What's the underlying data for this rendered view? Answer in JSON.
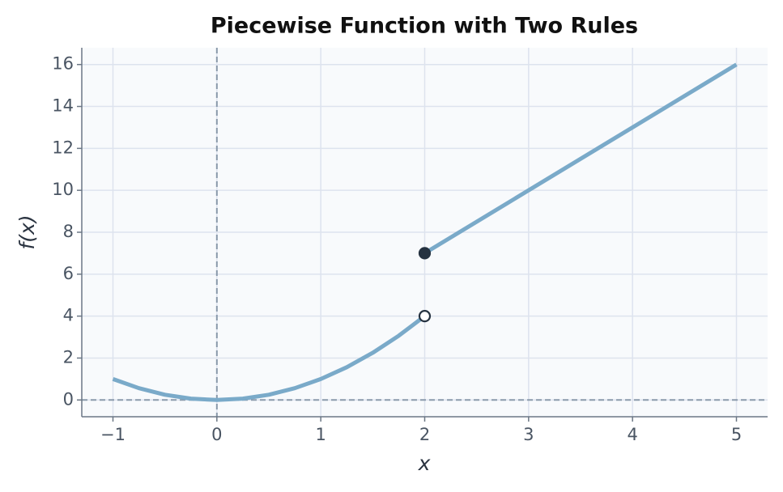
{
  "chart_data": {
    "type": "line",
    "title": "Piecewise Function with Two Rules",
    "x_label": "x",
    "y_label": "f(x)",
    "xlim": [
      -1.3,
      5.3
    ],
    "ylim": [
      -0.8,
      16.8
    ],
    "xticks": [
      {
        "value": -1,
        "label": "−1"
      },
      0,
      1,
      2,
      3,
      4,
      5
    ],
    "yticks": [
      0,
      2,
      4,
      6,
      8,
      10,
      12,
      14,
      16
    ],
    "grid": true,
    "hlines": [
      0
    ],
    "vlines": [
      0
    ],
    "series": [
      {
        "color": "#7aaac9",
        "x": [
          -1,
          -0.75,
          -0.5,
          -0.25,
          0,
          0.25,
          0.5,
          0.75,
          1,
          1.25,
          1.5,
          1.75,
          2
        ],
        "values": [
          1,
          0.5625,
          0.25,
          0.0625,
          0,
          0.0625,
          0.25,
          0.5625,
          1,
          1.5625,
          2.25,
          3.0625,
          4
        ]
      },
      {
        "color": "#7aaac9",
        "x": [
          2,
          5
        ],
        "values": [
          7,
          16
        ]
      }
    ],
    "points": [
      {
        "x": 2,
        "y": 7,
        "filled": true,
        "color": "#253240"
      },
      {
        "x": 2,
        "y": 4,
        "filled": false,
        "color": "#253240"
      }
    ]
  }
}
